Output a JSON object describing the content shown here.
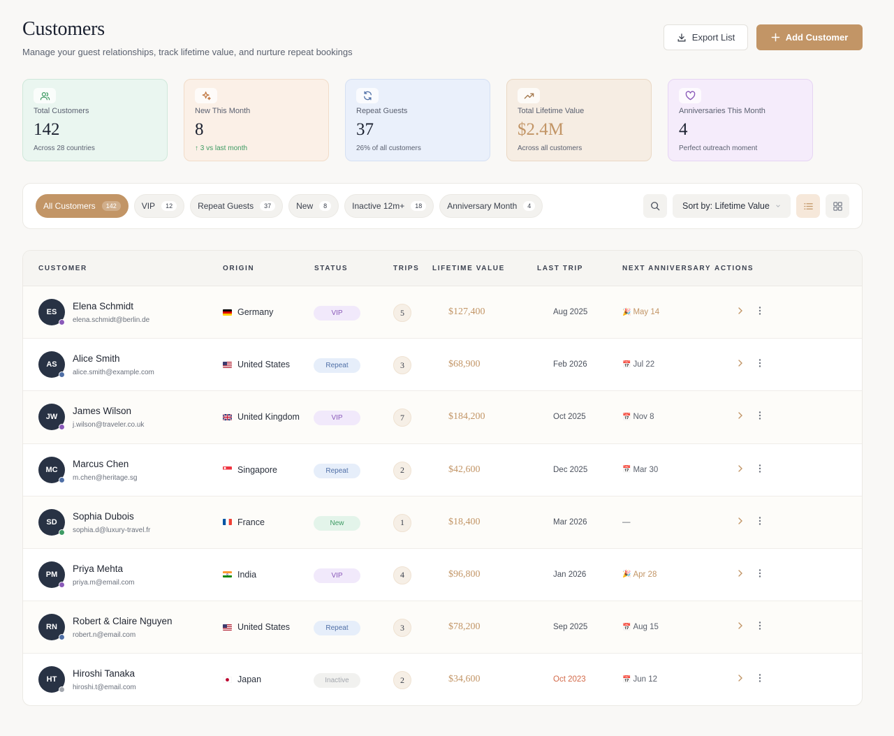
{
  "header": {
    "title": "Customers",
    "subtitle": "Manage your guest relationships, track lifetime value, and nurture repeat bookings",
    "export_label": "Export List",
    "add_label": "Add Customer"
  },
  "stats": [
    {
      "label": "Total Customers",
      "value": "142",
      "note": "Across 28 countries",
      "icon": "users-icon",
      "bg": "#eaf6f0",
      "border": "#cfe8da",
      "icon_color": "#3d9a62"
    },
    {
      "label": "New This Month",
      "value": "8",
      "note": "↑ 3 vs last month",
      "icon": "sparkles-icon",
      "bg": "#fbf0e7",
      "border": "#f1dcc9",
      "icon_color": "#c27a45"
    },
    {
      "label": "Repeat Guests",
      "value": "37",
      "note": "26% of all customers",
      "icon": "refresh-icon",
      "bg": "#eaf0fb",
      "border": "#d5e0f3",
      "icon_color": "#4f6fa6"
    },
    {
      "label": "Total Lifetime Value",
      "value": "$2.4M",
      "note": "Across all customers",
      "icon": "trending-up-icon",
      "bg": "#f6ede3",
      "border": "#ead8c4",
      "icon_color": "#a57a4f"
    },
    {
      "label": "Anniversaries This Month",
      "value": "4",
      "note": "Perfect outreach moment",
      "icon": "heart-icon",
      "bg": "#f5ecfb",
      "border": "#e6d5f3",
      "icon_color": "#8a5ab9"
    }
  ],
  "filters": [
    {
      "label": "All Customers",
      "count": "142",
      "active": true
    },
    {
      "label": "VIP",
      "count": "12"
    },
    {
      "label": "Repeat Guests",
      "count": "37"
    },
    {
      "label": "New",
      "count": "8"
    },
    {
      "label": "Inactive 12m+",
      "count": "18"
    },
    {
      "label": "Anniversary Month",
      "count": "4"
    }
  ],
  "sort_label": "Sort by: Lifetime Value",
  "columns": {
    "customer": "CUSTOMER",
    "origin": "ORIGIN",
    "status": "STATUS",
    "trips": "TRIPS",
    "ltv": "LIFETIME VALUE",
    "last_trip": "LAST TRIP",
    "anniversary": "NEXT ANNIVERSARY",
    "actions": "ACTIONS"
  },
  "customers": [
    {
      "initials": "ES",
      "name": "Elena Schmidt",
      "email": "elena.schmidt@berlin.de",
      "country": "Germany",
      "flag": "de",
      "status": "VIP",
      "trips": "5",
      "ltv": "$127,400",
      "last_trip": "Aug 2025",
      "anniversary": "May 14",
      "anniv_icon": "🎉",
      "dot": "#8a5ab9"
    },
    {
      "initials": "AS",
      "name": "Alice Smith",
      "email": "alice.smith@example.com",
      "country": "United States",
      "flag": "us",
      "status": "Repeat",
      "trips": "3",
      "ltv": "$68,900",
      "last_trip": "Feb 2026",
      "anniversary": "Jul 22",
      "anniv_icon": "📅",
      "dot": "#4f6fa6"
    },
    {
      "initials": "JW",
      "name": "James Wilson",
      "email": "j.wilson@traveler.co.uk",
      "country": "United Kingdom",
      "flag": "gb",
      "status": "VIP",
      "trips": "7",
      "ltv": "$184,200",
      "last_trip": "Oct 2025",
      "anniversary": "Nov 8",
      "anniv_icon": "📅",
      "dot": "#8a5ab9"
    },
    {
      "initials": "MC",
      "name": "Marcus Chen",
      "email": "m.chen@heritage.sg",
      "country": "Singapore",
      "flag": "sg",
      "status": "Repeat",
      "trips": "2",
      "ltv": "$42,600",
      "last_trip": "Dec 2025",
      "anniversary": "Mar 30",
      "anniv_icon": "📅",
      "dot": "#4f6fa6"
    },
    {
      "initials": "SD",
      "name": "Sophia Dubois",
      "email": "sophia.d@luxury-travel.fr",
      "country": "France",
      "flag": "fr",
      "status": "New",
      "trips": "1",
      "ltv": "$18,400",
      "last_trip": "Mar 2026",
      "anniversary": "—",
      "anniv_icon": "",
      "dot": "#3e9b64"
    },
    {
      "initials": "PM",
      "name": "Priya Mehta",
      "email": "priya.m@email.com",
      "country": "India",
      "flag": "in",
      "status": "VIP",
      "trips": "4",
      "ltv": "$96,800",
      "last_trip": "Jan 2026",
      "anniversary": "Apr 28",
      "anniv_icon": "🎉",
      "dot": "#8a5ab9"
    },
    {
      "initials": "RN",
      "name": "Robert & Claire Nguyen",
      "email": "robert.n@email.com",
      "country": "United States",
      "flag": "us",
      "status": "Repeat",
      "trips": "3",
      "ltv": "$78,200",
      "last_trip": "Sep 2025",
      "anniversary": "Aug 15",
      "anniv_icon": "📅",
      "dot": "#4f6fa6"
    },
    {
      "initials": "HT",
      "name": "Hiroshi Tanaka",
      "email": "hiroshi.t@email.com",
      "country": "Japan",
      "flag": "jp",
      "status": "Inactive",
      "trips": "2",
      "ltv": "$34,600",
      "last_trip": "Oct 2023",
      "anniversary": "Jun 12",
      "anniv_icon": "📅",
      "dot": "#a3a7ae",
      "overdue": true
    }
  ]
}
